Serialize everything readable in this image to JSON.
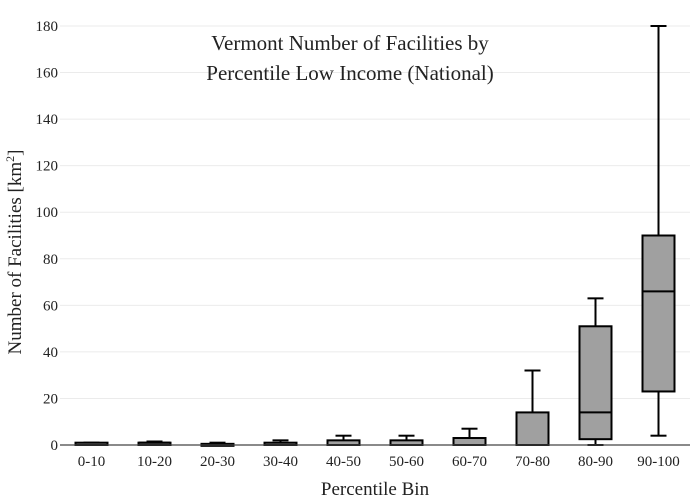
{
  "chart_data": {
    "type": "box",
    "title_lines": [
      "Vermont Number of Facilities by",
      "Percentile Low Income (National)"
    ],
    "xlabel": "Percentile Bin",
    "ylabel_text": "Number of Facilities  [km",
    "ylabel_superscript": "2",
    "ylabel_close": "]",
    "ylim": [
      0,
      180
    ],
    "yticks": [
      0,
      20,
      40,
      60,
      80,
      100,
      120,
      140,
      160,
      180
    ],
    "yticklabels": [
      "0",
      "20",
      "40",
      "60",
      "80",
      "100",
      "120",
      "140",
      "160",
      "180"
    ],
    "grid": true,
    "categories": [
      "0-10",
      "10-20",
      "20-30",
      "30-40",
      "40-50",
      "50-60",
      "60-70",
      "70-80",
      "80-90",
      "90-100"
    ],
    "boxes": [
      {
        "min": 0,
        "q1": 0,
        "median": 0,
        "q3": 1,
        "max": 1
      },
      {
        "min": 0,
        "q1": 0,
        "median": 1,
        "q3": 1,
        "max": 1.5
      },
      {
        "min": 0,
        "q1": 0,
        "median": 0,
        "q3": 0.5,
        "max": 1
      },
      {
        "min": 0,
        "q1": 0,
        "median": 0,
        "q3": 1,
        "max": 2
      },
      {
        "min": 0,
        "q1": 0,
        "median": 0,
        "q3": 2,
        "max": 4
      },
      {
        "min": 0,
        "q1": 0,
        "median": 0,
        "q3": 2,
        "max": 4
      },
      {
        "min": 0,
        "q1": 0,
        "median": 0,
        "q3": 3,
        "max": 7
      },
      {
        "min": 0,
        "q1": 0,
        "median": 0,
        "q3": 14,
        "max": 32
      },
      {
        "min": 0,
        "q1": 2.5,
        "median": 14,
        "q3": 51,
        "max": 63
      },
      {
        "min": 4,
        "q1": 23,
        "median": 66,
        "q3": 90,
        "max": 180
      }
    ],
    "colors": {
      "box_fill": "#a0a0a0",
      "box_stroke": "#000000",
      "grid": "#ebebeb",
      "axis": "#444444"
    }
  }
}
